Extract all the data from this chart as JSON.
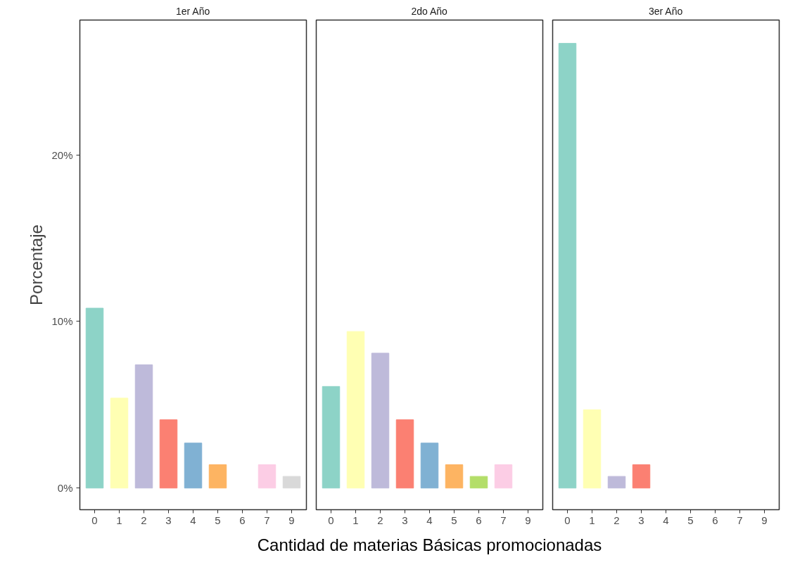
{
  "chart_data": [
    {
      "type": "bar",
      "title": "1er Año",
      "ylabel": "Porcentaje",
      "categories": [
        "0",
        "1",
        "2",
        "3",
        "4",
        "5",
        "6",
        "7",
        "9"
      ],
      "values": [
        10.8,
        5.4,
        7.4,
        4.1,
        2.7,
        1.4,
        null,
        1.4,
        0.7
      ],
      "colors": [
        "#8dd3c7",
        "#ffffb3",
        "#bebada",
        "#fb8072",
        "#80b1d3",
        "#fdb462",
        "#b3de69",
        "#fccde5",
        "#d9d9d9"
      ],
      "ylim": [
        -1.3,
        28.1
      ],
      "yticks": [
        {
          "value": 0,
          "label": "0%"
        },
        {
          "value": 10,
          "label": "10%"
        },
        {
          "value": 20,
          "label": "20%"
        }
      ],
      "grid": false,
      "legend": false
    },
    {
      "type": "bar",
      "title": "2do Año",
      "xlabel": "Cantidad de materias Básicas promocionadas",
      "categories": [
        "0",
        "1",
        "2",
        "3",
        "4",
        "5",
        "6",
        "7",
        "9"
      ],
      "values": [
        6.1,
        9.4,
        8.1,
        4.1,
        2.7,
        1.4,
        0.7,
        1.4,
        null
      ],
      "colors": [
        "#8dd3c7",
        "#ffffb3",
        "#bebada",
        "#fb8072",
        "#80b1d3",
        "#fdb462",
        "#b3de69",
        "#fccde5",
        "#d9d9d9"
      ],
      "ylim": [
        -1.3,
        28.1
      ],
      "tick_labels": "x",
      "grid": false,
      "legend": false
    },
    {
      "type": "bar",
      "title": "3er Año",
      "categories": [
        "0",
        "1",
        "2",
        "3",
        "4",
        "5",
        "6",
        "7",
        "9"
      ],
      "values": [
        26.7,
        4.7,
        0.7,
        1.4,
        null,
        null,
        null,
        null,
        null
      ],
      "colors": [
        "#8dd3c7",
        "#ffffb3",
        "#bebada",
        "#fb8072",
        "#80b1d3",
        "#fdb462",
        "#b3de69",
        "#fccde5",
        "#d9d9d9"
      ],
      "ylim": [
        -1.3,
        28.1
      ],
      "tick_labels": "x",
      "grid": false,
      "legend": false
    }
  ]
}
